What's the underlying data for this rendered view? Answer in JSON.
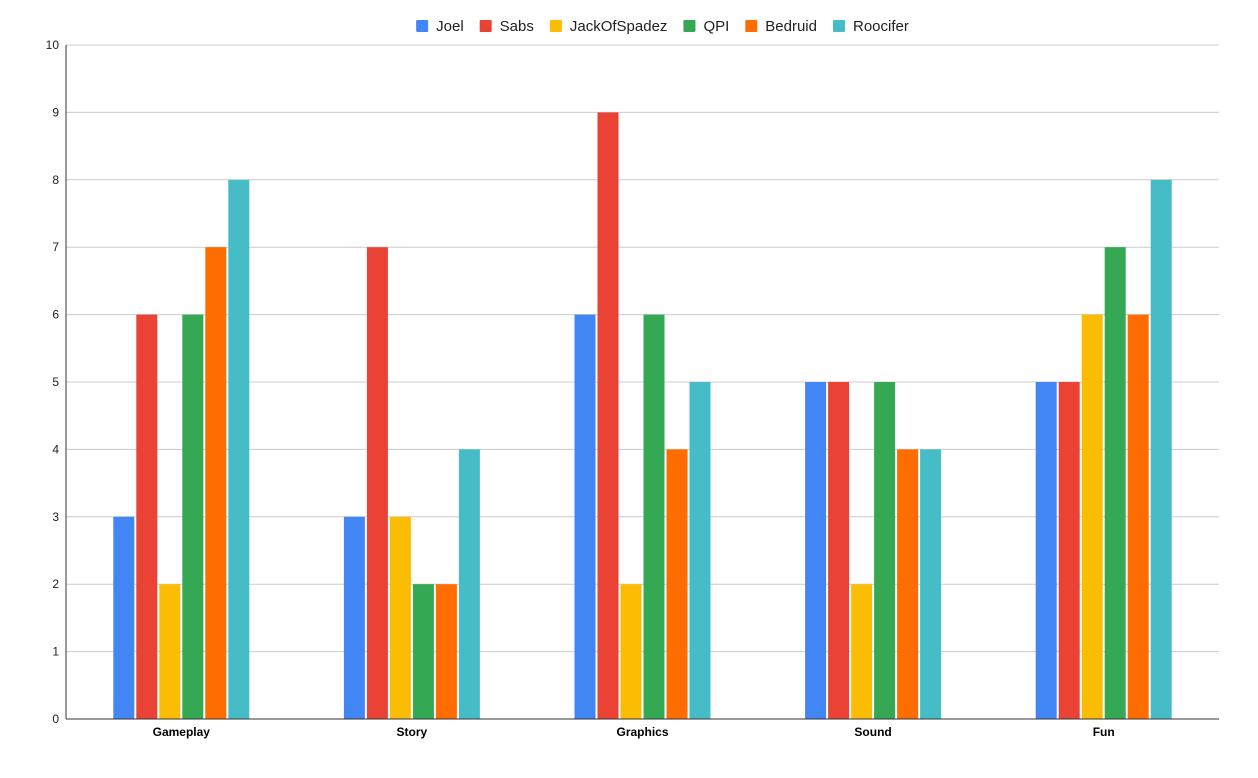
{
  "chart_data": {
    "type": "bar",
    "title": "",
    "xlabel": "",
    "ylabel": "",
    "categories": [
      "Gameplay",
      "Story",
      "Graphics",
      "Sound",
      "Fun"
    ],
    "series": [
      {
        "name": "Joel",
        "color": "#4285f4",
        "values": [
          3,
          3,
          6,
          5,
          5
        ]
      },
      {
        "name": "Sabs",
        "color": "#ea4335",
        "values": [
          6,
          7,
          9,
          5,
          5
        ]
      },
      {
        "name": "JackOfSpadez",
        "color": "#fbbc04",
        "values": [
          2,
          3,
          2,
          2,
          6
        ]
      },
      {
        "name": "QPI",
        "color": "#34a853",
        "values": [
          6,
          2,
          6,
          5,
          7
        ]
      },
      {
        "name": "Bedruid",
        "color": "#ff6d01",
        "values": [
          7,
          2,
          4,
          4,
          6
        ]
      },
      {
        "name": "Roocifer",
        "color": "#46bdc6",
        "values": [
          8,
          4,
          5,
          4,
          8
        ]
      }
    ],
    "ylim": [
      0,
      10
    ],
    "yticks": [
      "0",
      "1",
      "2",
      "3",
      "4",
      "5",
      "6",
      "7",
      "8",
      "9",
      "10"
    ],
    "grid": true,
    "legend_position": "top-center"
  }
}
